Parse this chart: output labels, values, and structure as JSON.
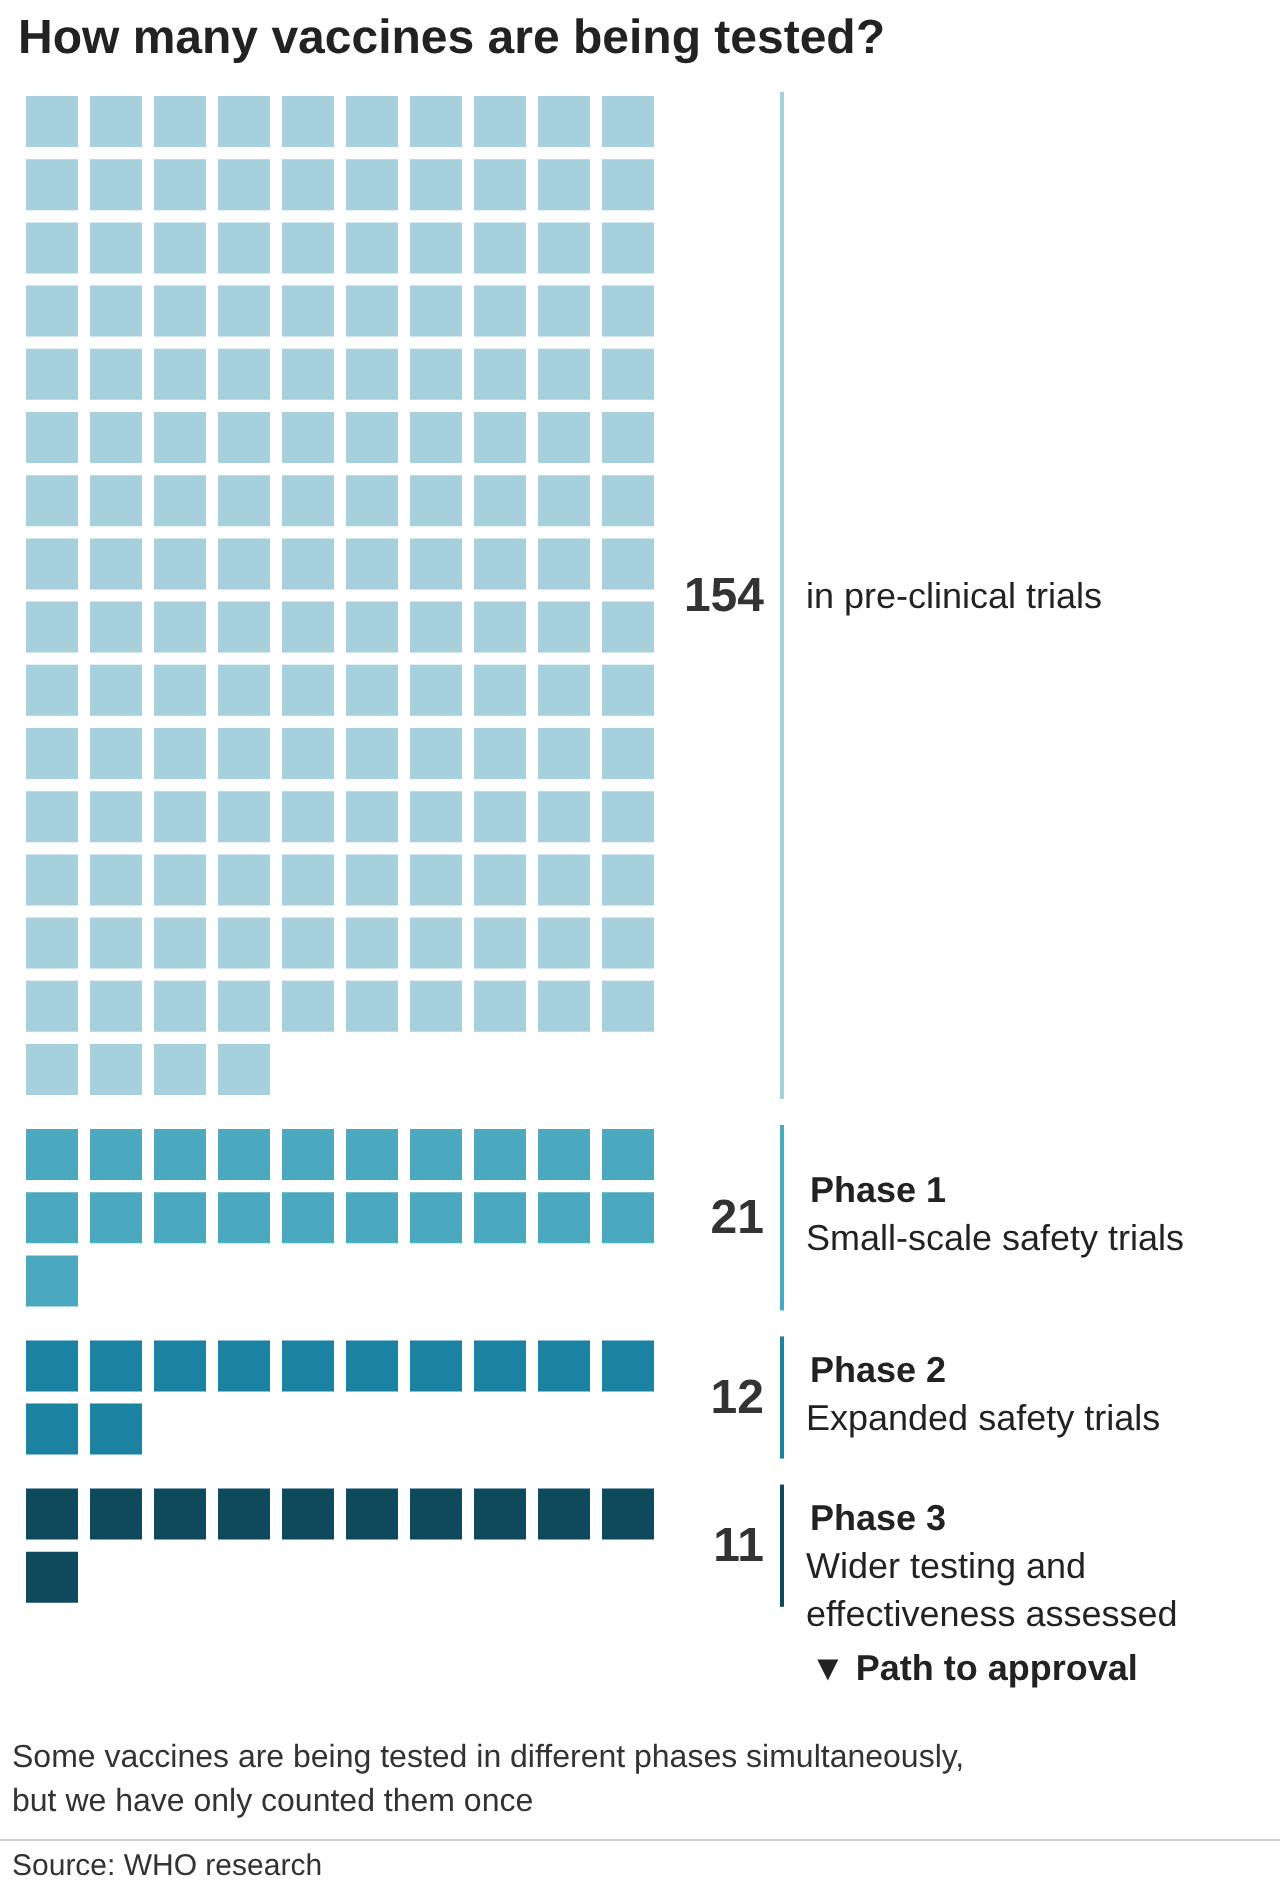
{
  "chart_data": {
    "type": "other",
    "title": "How many vaccines are being tested?",
    "categories": [
      "in pre-clinical trials",
      "Phase 1\nSmall-scale safety trials",
      "Phase 2\nExpanded safety trials",
      "Phase 3\nWider testing and effectiveness assessed"
    ],
    "values": [
      154,
      21,
      12,
      11
    ],
    "colors": [
      "#a6d0dc",
      "#4aa9c1",
      "#1b82a1",
      "#0e4a5c"
    ],
    "data_labels": true,
    "annotations": [
      "▼ Path to approval",
      "Some vaccines are being tested in different phases simultaneously, but we have only counted them once",
      "Source: WHO research"
    ]
  }
}
